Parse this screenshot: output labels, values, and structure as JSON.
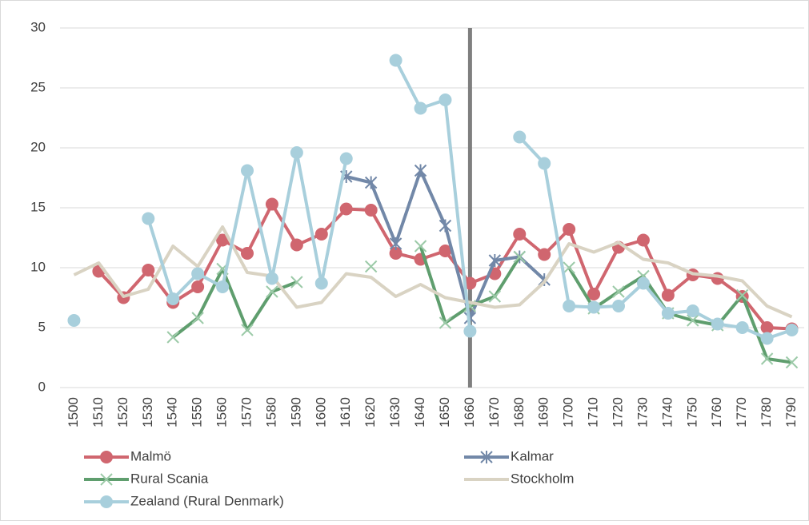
{
  "chart_data": {
    "type": "line",
    "categories": [
      "1500",
      "1510",
      "1520",
      "1530",
      "1540",
      "1550",
      "1560",
      "1570",
      "1580",
      "1590",
      "1600",
      "1610",
      "1620",
      "1630",
      "1640",
      "1650",
      "1660",
      "1670",
      "1680",
      "1690",
      "1700",
      "1710",
      "1720",
      "1730",
      "1740",
      "1750",
      "1760",
      "1770",
      "1780",
      "1790"
    ],
    "series": [
      {
        "name": "Malmö",
        "color": "#d0666f",
        "marker": "circle",
        "values": [
          null,
          9.7,
          7.5,
          9.8,
          7.1,
          8.4,
          12.3,
          11.2,
          15.3,
          11.9,
          12.8,
          14.9,
          14.8,
          11.2,
          10.7,
          11.4,
          8.7,
          9.5,
          12.8,
          11.1,
          13.2,
          7.8,
          11.7,
          12.3,
          7.7,
          9.4,
          9.1,
          7.6,
          5.0,
          4.9
        ]
      },
      {
        "name": "Kalmar",
        "color": "#7288a8",
        "marker": "star",
        "values": [
          null,
          null,
          null,
          null,
          null,
          null,
          null,
          null,
          null,
          null,
          null,
          17.6,
          17.1,
          12.0,
          18.1,
          13.5,
          5.8,
          10.6,
          10.9,
          9.0,
          null,
          null,
          null,
          null,
          null,
          null,
          null,
          null,
          null,
          null
        ]
      },
      {
        "name": "Rural Scania",
        "color": "#5f9e6e",
        "marker_color": "#9ccaa8",
        "marker": "x",
        "values": [
          null,
          null,
          null,
          null,
          4.2,
          5.8,
          9.9,
          4.8,
          8.0,
          8.8,
          null,
          null,
          10.1,
          null,
          11.8,
          5.4,
          6.8,
          7.6,
          10.9,
          null,
          10.0,
          6.6,
          8.0,
          9.3,
          6.2,
          5.6,
          5.2,
          7.7,
          2.4,
          2.1
        ]
      },
      {
        "name": "Stockholm",
        "color": "#d9d3c3",
        "marker": "none",
        "values": [
          9.4,
          10.4,
          7.6,
          8.2,
          11.8,
          10.1,
          13.4,
          9.6,
          9.3,
          6.7,
          7.1,
          9.5,
          9.2,
          7.6,
          8.6,
          7.5,
          7.1,
          6.7,
          6.9,
          8.8,
          12.0,
          11.3,
          12.1,
          10.7,
          10.4,
          9.5,
          9.3,
          8.9,
          6.8,
          5.9
        ]
      },
      {
        "name": "Zealand (Rural Denmark)",
        "color": "#a8cfdc",
        "marker": "circle",
        "values": [
          5.6,
          null,
          null,
          14.1,
          7.4,
          9.5,
          8.4,
          18.1,
          9.1,
          19.6,
          8.7,
          19.1,
          null,
          27.3,
          23.3,
          24.0,
          4.7,
          null,
          20.9,
          18.7,
          6.8,
          6.7,
          6.8,
          8.7,
          6.2,
          6.4,
          5.3,
          5.0,
          4.1,
          4.8
        ]
      }
    ],
    "ylim": [
      0,
      30
    ],
    "yticks": [
      0,
      5,
      10,
      15,
      20,
      25,
      30
    ],
    "grid": true,
    "vertical_line": {
      "category_index": 16,
      "color": "#7f7f7f"
    },
    "legend": "bottom"
  }
}
